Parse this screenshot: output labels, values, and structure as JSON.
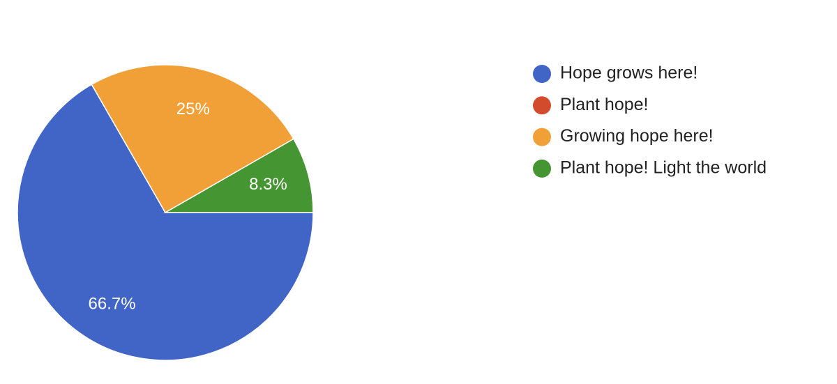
{
  "chart_data": {
    "type": "pie",
    "categories": [
      "Hope grows here!",
      "Plant hope!",
      "Growing hope here!",
      "Plant hope! Light the world"
    ],
    "values": [
      66.7,
      0,
      25,
      8.3
    ],
    "value_labels": [
      "66.7%",
      null,
      "25%",
      "8.3%"
    ],
    "colors": [
      "#4065c6",
      "#d24b2c",
      "#f1a038",
      "#459633"
    ],
    "legend": "right"
  }
}
